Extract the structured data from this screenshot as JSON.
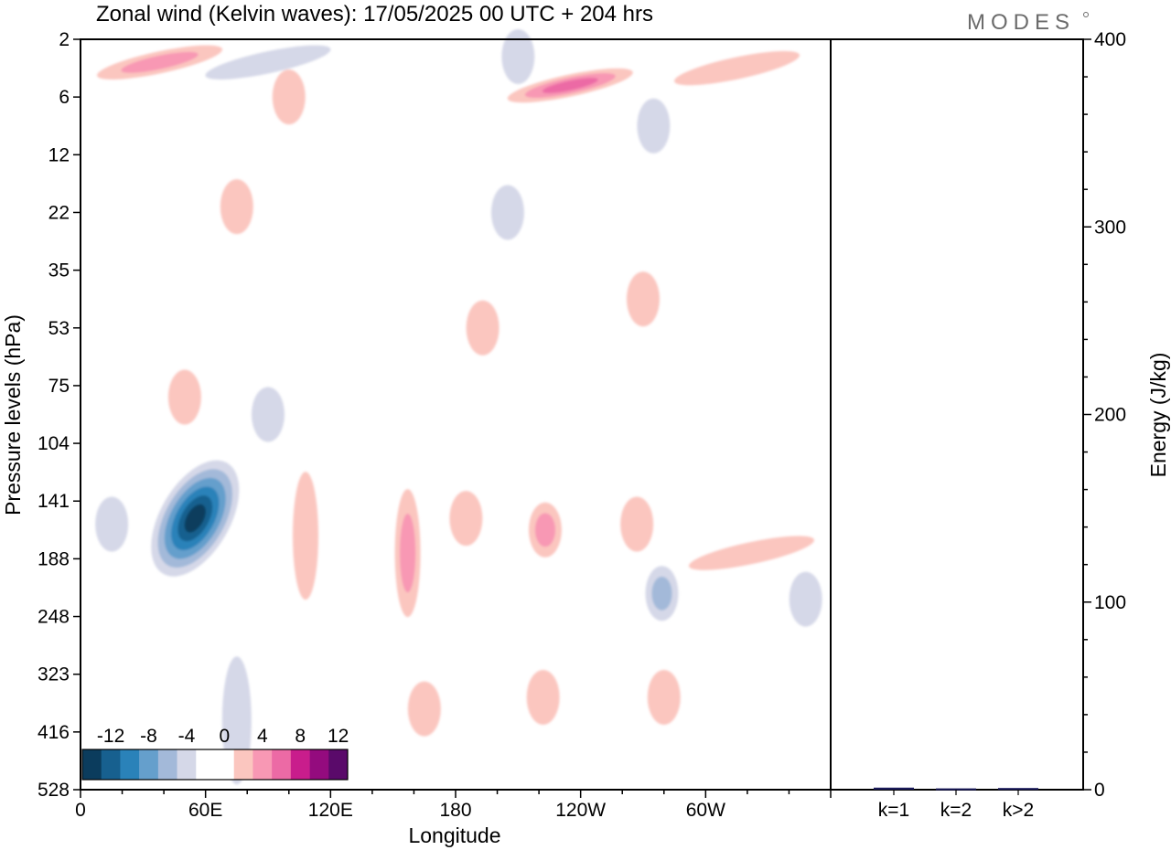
{
  "chart_data": {
    "type": "heatmap",
    "title": "Zonal wind (Kelvin waves):  17/05/2025  00 UTC  + 204 hrs",
    "logo": "MODES",
    "xlabel": "Longitude",
    "ylabel": "Pressure levels (hPa)",
    "x_ticks": [
      {
        "lon": 0,
        "label": "0"
      },
      {
        "lon": 60,
        "label": "60E"
      },
      {
        "lon": 120,
        "label": "120E"
      },
      {
        "lon": 180,
        "label": "180"
      },
      {
        "lon": 240,
        "label": "120W"
      },
      {
        "lon": 300,
        "label": "60W"
      }
    ],
    "xlim": [
      0,
      360
    ],
    "pressure_levels": [
      "2",
      "6",
      "12",
      "22",
      "35",
      "53",
      "75",
      "104",
      "141",
      "188",
      "248",
      "323",
      "416",
      "528"
    ],
    "colorbar": {
      "labels": [
        "-12",
        "-8",
        "-4",
        "0",
        "4",
        "8",
        "12"
      ],
      "levels": [
        -14,
        -12,
        -10,
        -8,
        -6,
        -4,
        -2,
        0,
        2,
        4,
        6,
        8,
        10,
        12,
        14
      ],
      "colors": [
        "#0b3c5d",
        "#17608f",
        "#2a82b9",
        "#659fcc",
        "#a3b9d9",
        "#d5d8e8",
        "#ffffff",
        "#ffffff",
        "#fbc6bf",
        "#f898b4",
        "#ec6aa5",
        "#c91d8c",
        "#940b7e",
        "#5a0a6a"
      ]
    },
    "features": [
      {
        "lon": 55,
        "level": 8.3,
        "value": -13,
        "shape": "strong easterly core, tilted"
      },
      {
        "lon": 15,
        "level": 8.4,
        "value": -3,
        "shape": "weak easterly"
      },
      {
        "lon": 75,
        "level": 11.8,
        "value": -3,
        "shape": "weak easterly, elongated"
      },
      {
        "lon": 90,
        "level": 6.5,
        "value": -2,
        "shape": "weak easterly"
      },
      {
        "lon": 50,
        "level": 6.2,
        "value": 3,
        "shape": "westerly patch"
      },
      {
        "lon": 108,
        "level": 8.6,
        "value": 3,
        "shape": "westerly column"
      },
      {
        "lon": 157,
        "level": 8.9,
        "value": 6,
        "shape": "westerly column"
      },
      {
        "lon": 185,
        "level": 8.3,
        "value": 3,
        "shape": "westerly patch"
      },
      {
        "lon": 223,
        "level": 8.5,
        "value": 6,
        "shape": "westerly maximum"
      },
      {
        "lon": 267,
        "level": 8.4,
        "value": 3,
        "shape": "westerly patch"
      },
      {
        "lon": 279,
        "level": 9.6,
        "value": -5,
        "shape": "easterly patch"
      },
      {
        "lon": 322,
        "level": 8.9,
        "value": 3,
        "shape": "westerly tilted band"
      },
      {
        "lon": 348,
        "level": 9.7,
        "value": -2,
        "shape": "weak easterly"
      },
      {
        "lon": 165,
        "level": 11.6,
        "value": 3,
        "shape": "westerly patch"
      },
      {
        "lon": 222,
        "level": 11.4,
        "value": 3,
        "shape": "westerly patch"
      },
      {
        "lon": 280,
        "level": 11.4,
        "value": 3,
        "shape": "westerly patch"
      },
      {
        "lon": 75,
        "level": 2.9,
        "value": 3,
        "shape": "westerly patch"
      },
      {
        "lon": 205,
        "level": 3.0,
        "value": -2,
        "shape": "weak easterly"
      },
      {
        "lon": 193,
        "level": 5.0,
        "value": 3,
        "shape": "westerly patch"
      },
      {
        "lon": 270,
        "level": 4.5,
        "value": 3,
        "shape": "westerly patch"
      },
      {
        "lon": 235,
        "level": 0.8,
        "value": 8,
        "shape": "upper westerly band, tilted"
      },
      {
        "lon": 315,
        "level": 0.5,
        "value": 3,
        "shape": "upper westerly band"
      },
      {
        "lon": 90,
        "level": 0.4,
        "value": -3,
        "shape": "upper easterly band"
      },
      {
        "lon": 38,
        "level": 0.4,
        "value": 5,
        "shape": "upper westerly band"
      },
      {
        "lon": 100,
        "level": 1.0,
        "value": 3,
        "shape": "upper westerly patch"
      },
      {
        "lon": 210,
        "level": 0.3,
        "value": -2,
        "shape": "upper easterly"
      },
      {
        "lon": 275,
        "level": 1.5,
        "value": -2,
        "shape": "upper easterly"
      }
    ],
    "energy_panel": {
      "ylabel": "Energy (J/kg)",
      "ylim": [
        0,
        400
      ],
      "y_ticks": [
        0,
        100,
        200,
        300,
        400
      ],
      "categories": [
        "k=1",
        "k=2",
        "k>2"
      ],
      "values": [
        0.6,
        0.2,
        0.4
      ],
      "bar_color": "#1a1a5a"
    }
  }
}
